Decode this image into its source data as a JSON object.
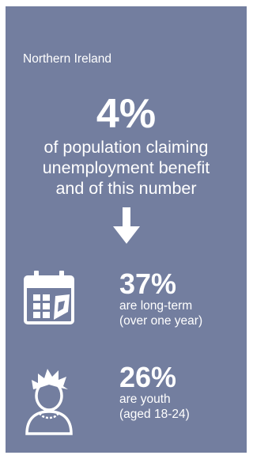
{
  "infographic": {
    "region": "Northern Ireland",
    "headline_value": "4%",
    "headline_lines": [
      "of population claiming",
      "unemployment benefit",
      "and of this number"
    ],
    "stats": [
      {
        "value": "37%",
        "lines": [
          "are long-term",
          "(over one year)"
        ],
        "icon": "calendar-icon"
      },
      {
        "value": "26%",
        "lines": [
          "are youth",
          "(aged 18-24)"
        ],
        "icon": "young-person-icon"
      }
    ],
    "colors": {
      "background": "#737e9f",
      "text": "#ffffff"
    }
  }
}
